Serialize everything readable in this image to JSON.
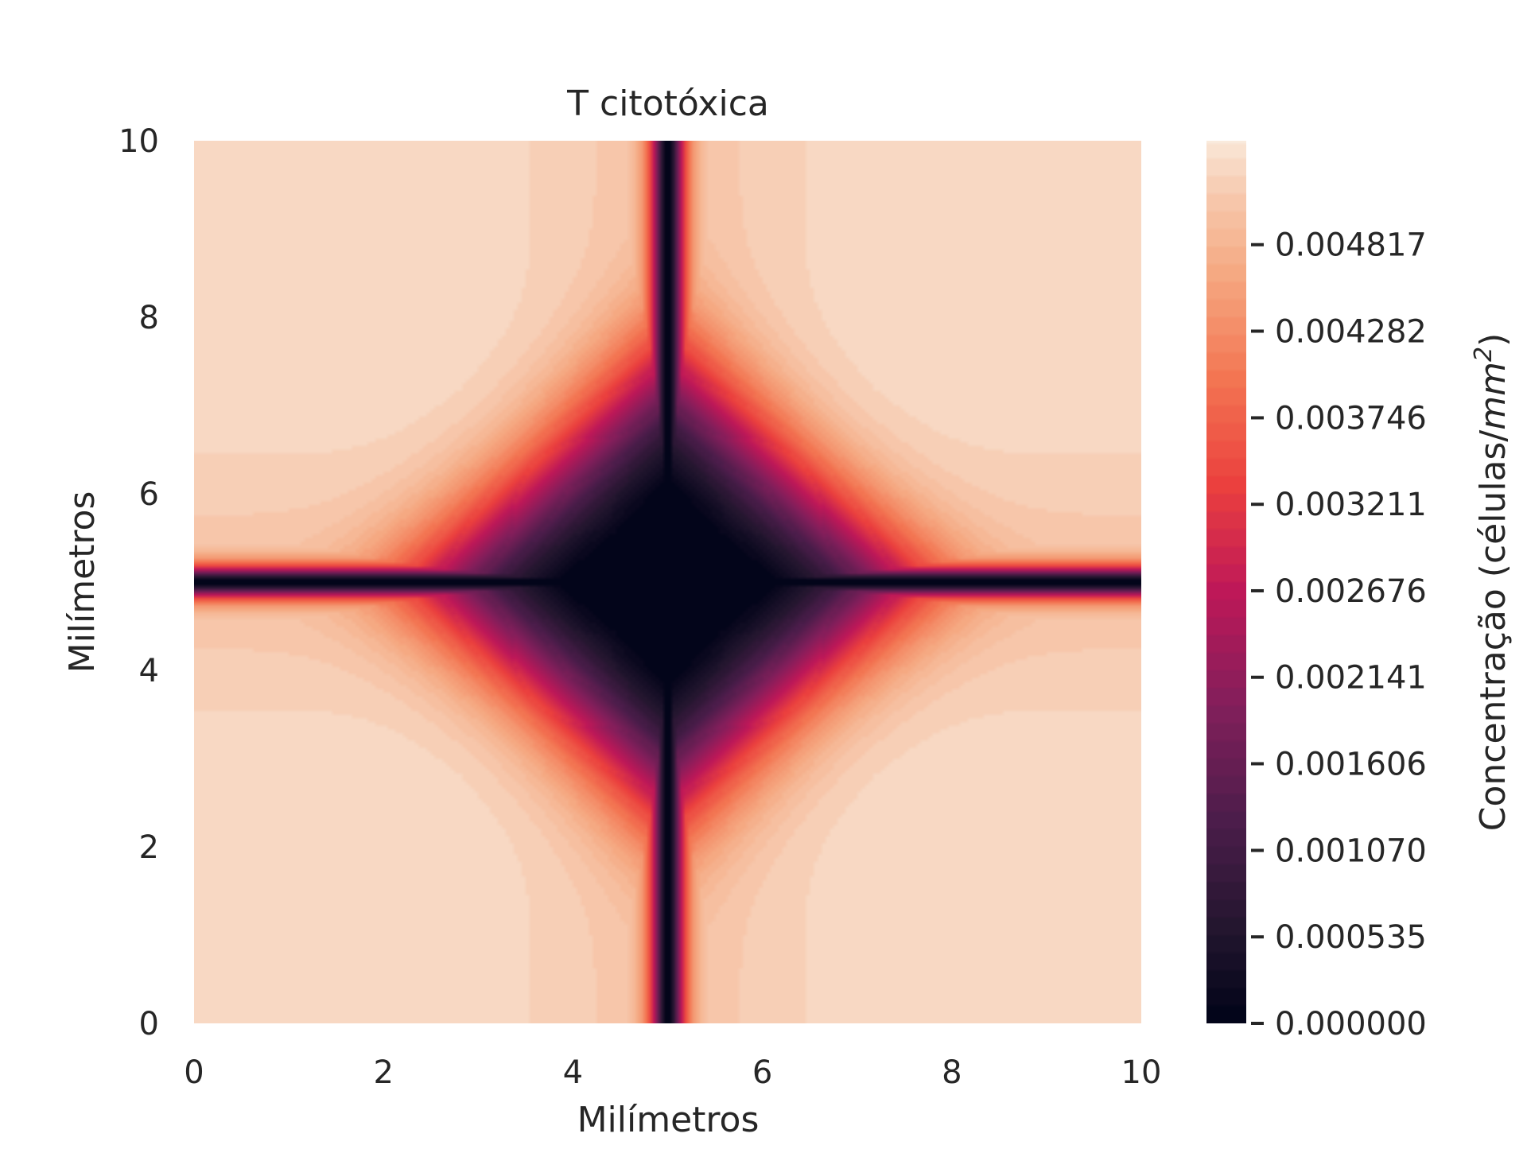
{
  "chart_data": {
    "type": "heatmap",
    "title": "T citotóxica",
    "xlabel": "Milímetros",
    "ylabel": "Milímetros",
    "xlim": [
      0,
      10
    ],
    "ylim": [
      0,
      10
    ],
    "x_ticks": [
      "0",
      "2",
      "4",
      "6",
      "8",
      "10"
    ],
    "y_ticks": [
      "0",
      "2",
      "4",
      "6",
      "8",
      "10"
    ],
    "grid": false,
    "colormap": "rocket",
    "colorbar": {
      "label": "Concentração (células/mm²)",
      "label_prefix": "Concentração (células/",
      "label_unit": "mm",
      "label_exponent": "2",
      "label_suffix": ")",
      "range": [
        0,
        0.00546
      ],
      "ticks": [
        "0.000000",
        "0.000535",
        "0.001070",
        "0.001606",
        "0.002141",
        "0.002676",
        "0.003211",
        "0.003746",
        "0.004282",
        "0.004817"
      ]
    },
    "field": {
      "minimum_location": [
        5.0,
        5.0
      ],
      "minimum_value": 0.0,
      "background_value": 0.0053,
      "features": [
        "diamond-shaped depleted core centered at (5, 5)",
        "thin depleted bands along x = 5 and y = 5"
      ]
    }
  }
}
